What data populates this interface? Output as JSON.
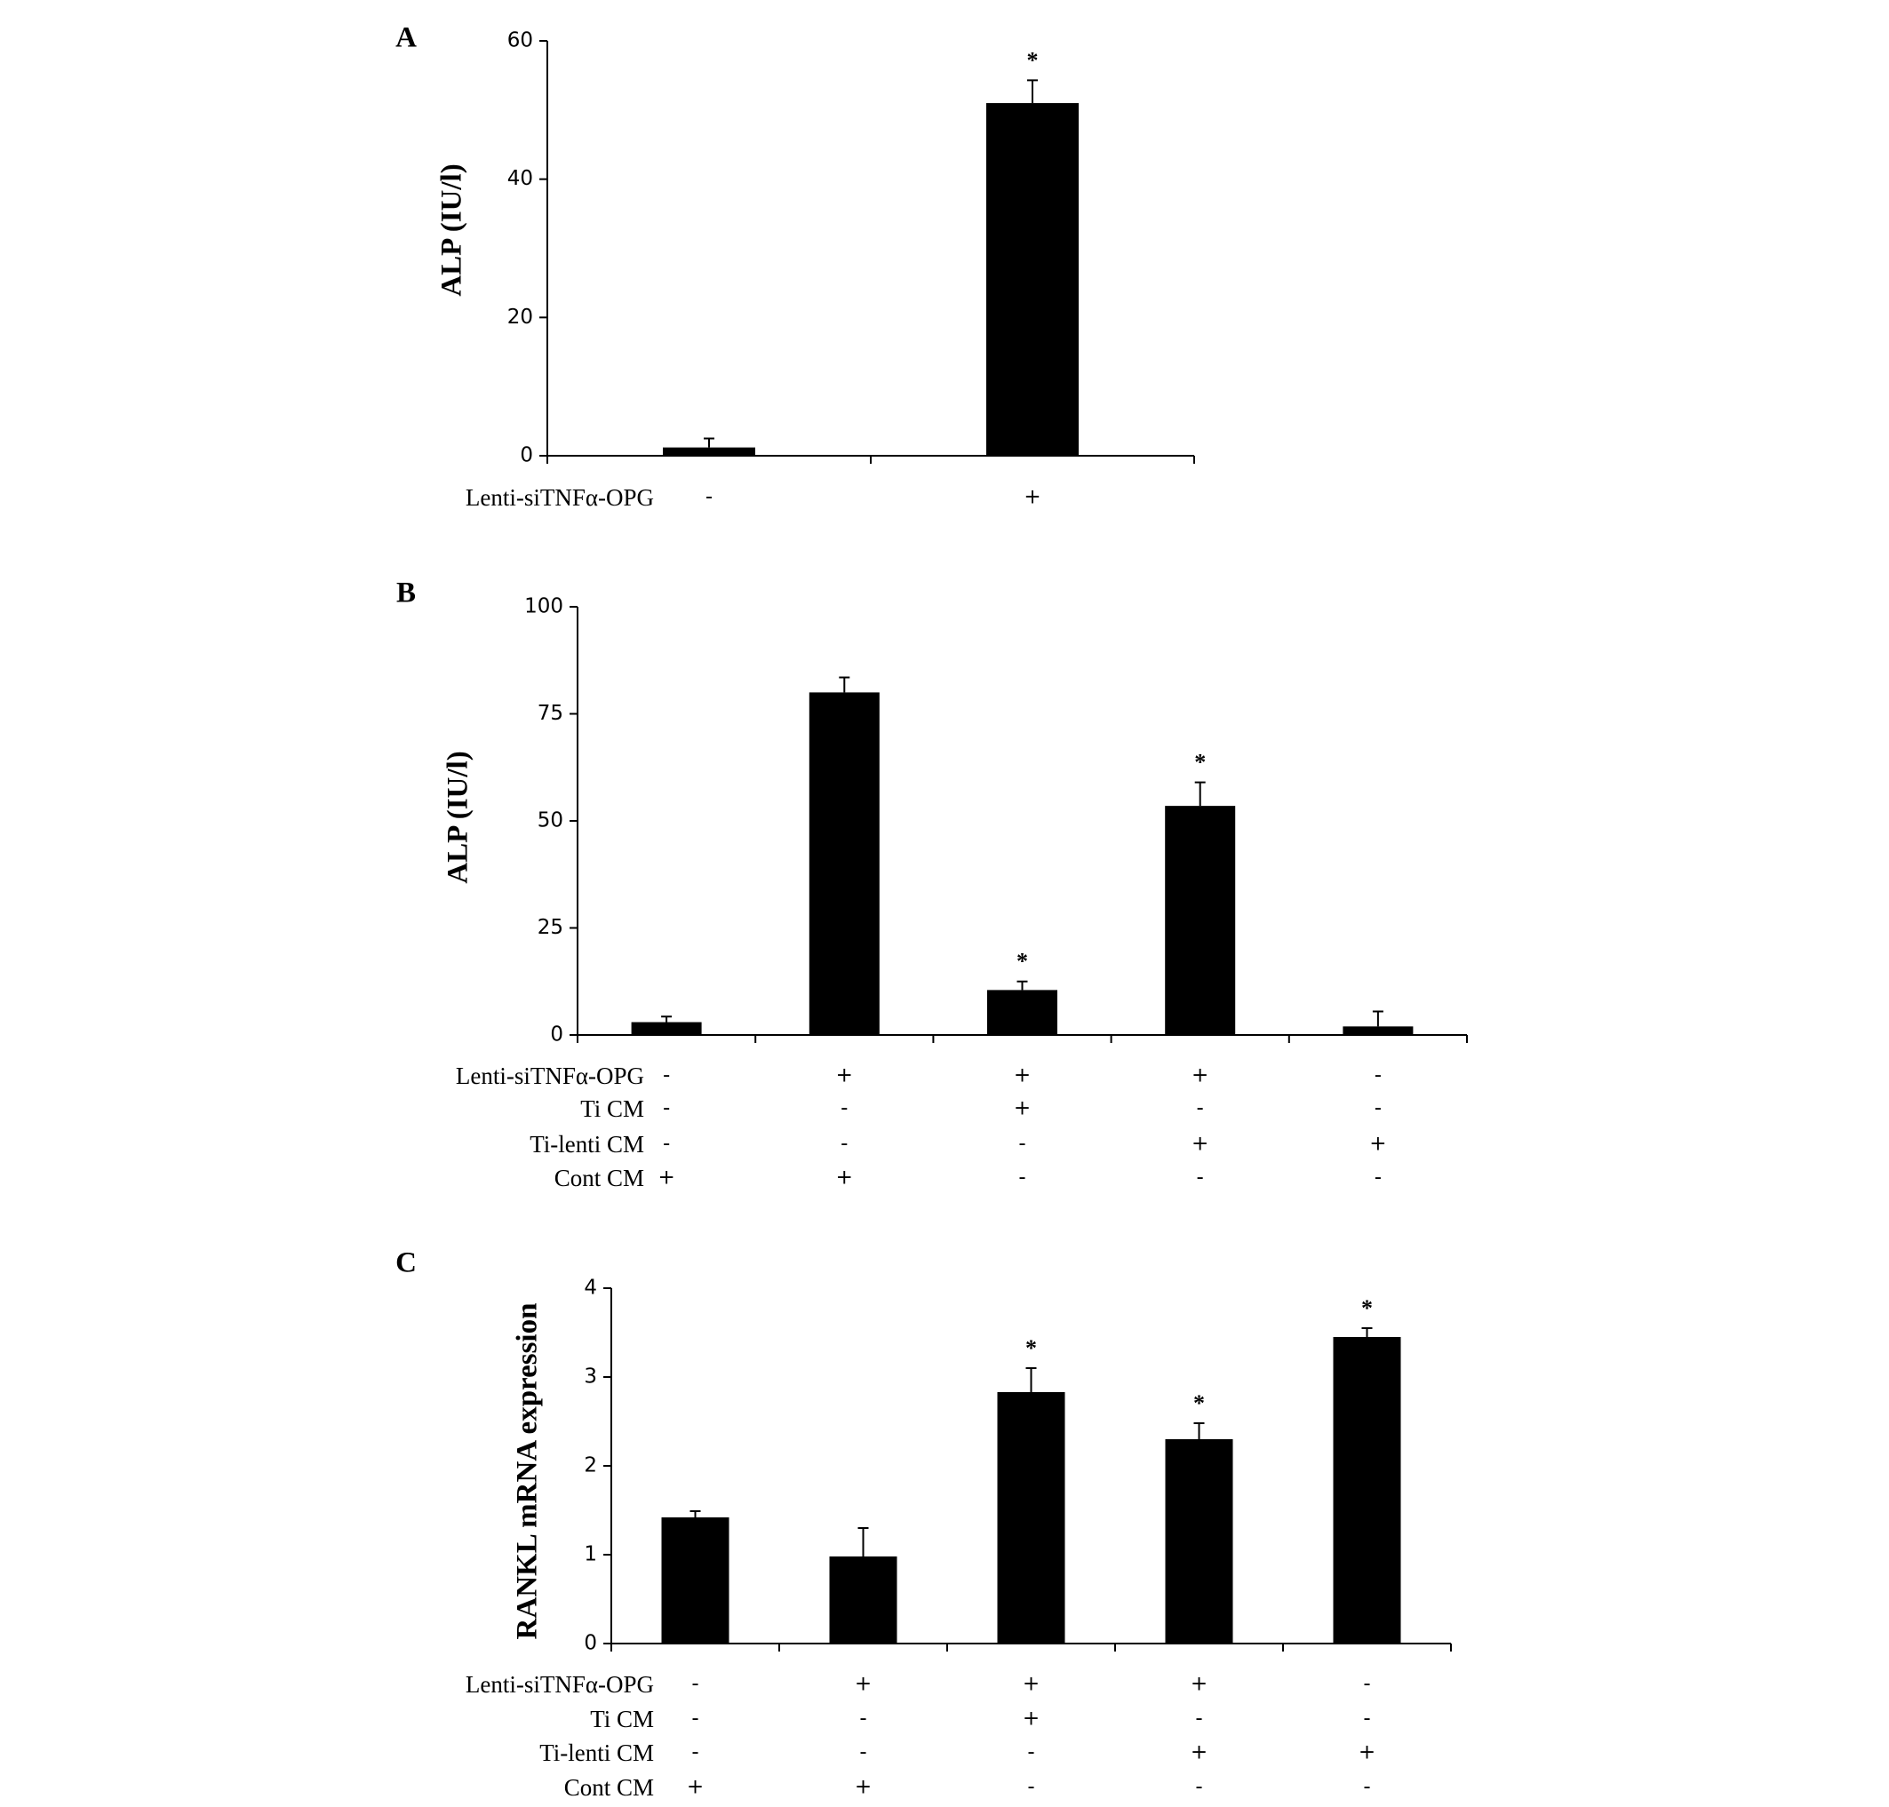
{
  "chart_data": [
    {
      "type": "bar",
      "panel": "A",
      "ylabel": "ALP (IU/l)",
      "color": "#000000",
      "categories": [
        null,
        null
      ],
      "values": [
        1.2,
        51
      ],
      "errors": [
        1.3,
        3.3
      ],
      "annotations": [
        null,
        "*"
      ],
      "ylim": [
        0,
        60
      ],
      "yticks": [
        0,
        20,
        40,
        60
      ],
      "conditions": [
        {
          "name": "Lenti-siTNFα-OPG",
          "marks": [
            "-",
            "+"
          ]
        }
      ]
    },
    {
      "type": "bar",
      "panel": "B",
      "ylabel": "ALP (IU/l)",
      "color": "#000000",
      "categories": [
        null,
        null,
        null,
        null,
        null
      ],
      "values": [
        3,
        80,
        10.5,
        53.5,
        2
      ],
      "errors": [
        1.3,
        3.5,
        2,
        5.5,
        3.5
      ],
      "annotations": [
        null,
        null,
        "*",
        "*",
        null
      ],
      "ylim": [
        0,
        100
      ],
      "yticks": [
        0,
        25,
        50,
        75,
        100
      ],
      "conditions": [
        {
          "name": "Lenti-siTNFα-OPG",
          "marks": [
            "-",
            "+",
            "+",
            "+",
            "-"
          ]
        },
        {
          "name": "Ti CM",
          "marks": [
            "-",
            "-",
            "+",
            "-",
            "-"
          ]
        },
        {
          "name": "Ti-lenti CM",
          "marks": [
            "-",
            "-",
            "-",
            "+",
            "+"
          ]
        },
        {
          "name": "Cont CM",
          "marks": [
            "+",
            "+",
            "-",
            "-",
            "-"
          ]
        }
      ]
    },
    {
      "type": "bar",
      "panel": "C",
      "ylabel": "RANKL mRNA expression",
      "color": "#000000",
      "categories": [
        null,
        null,
        null,
        null,
        null
      ],
      "values": [
        1.42,
        0.98,
        2.83,
        2.3,
        3.45
      ],
      "errors": [
        0.07,
        0.32,
        0.27,
        0.18,
        0.1
      ],
      "annotations": [
        null,
        null,
        "*",
        "*",
        "*"
      ],
      "ylim": [
        0,
        4
      ],
      "yticks": [
        0,
        1,
        2,
        3,
        4
      ],
      "conditions": [
        {
          "name": "Lenti-siTNFα-OPG",
          "marks": [
            "-",
            "+",
            "+",
            "+",
            "-"
          ]
        },
        {
          "name": "Ti CM",
          "marks": [
            "-",
            "-",
            "+",
            "-",
            "-"
          ]
        },
        {
          "name": "Ti-lenti CM",
          "marks": [
            "-",
            "-",
            "-",
            "+",
            "+"
          ]
        },
        {
          "name": "Cont CM",
          "marks": [
            "+",
            "+",
            "-",
            "-",
            "-"
          ]
        }
      ]
    }
  ]
}
